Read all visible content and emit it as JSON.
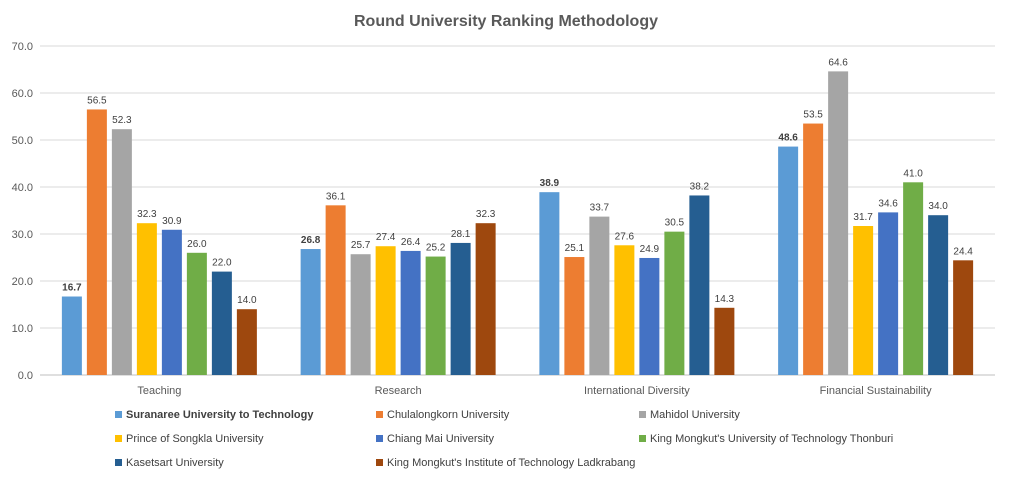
{
  "chart_data": {
    "type": "bar",
    "title": "Round University Ranking Methodology",
    "xlabel": "",
    "ylabel": "",
    "ylim": [
      0,
      70
    ],
    "yticks": [
      "0.0",
      "10.0",
      "20.0",
      "30.0",
      "40.0",
      "50.0",
      "60.0",
      "70.0"
    ],
    "grid": true,
    "legend_position": "bottom",
    "categories": [
      "Teaching",
      "Research",
      "International Diversity",
      "Financial Sustainability"
    ],
    "series": [
      {
        "name": "Suranaree University to Technology",
        "color": "#5B9BD5",
        "bold": true,
        "values": [
          16.7,
          26.8,
          38.9,
          48.6
        ]
      },
      {
        "name": "Chulalongkorn University",
        "color": "#ED7D31",
        "bold": false,
        "values": [
          56.5,
          36.1,
          25.1,
          53.5
        ]
      },
      {
        "name": "Mahidol University",
        "color": "#A5A5A5",
        "bold": false,
        "values": [
          52.3,
          25.7,
          33.7,
          64.6
        ]
      },
      {
        "name": "Prince of Songkla University",
        "color": "#FFC000",
        "bold": false,
        "values": [
          32.3,
          27.4,
          27.6,
          31.7
        ]
      },
      {
        "name": "Chiang Mai University",
        "color": "#4472C4",
        "bold": false,
        "values": [
          30.9,
          26.4,
          24.9,
          34.6
        ]
      },
      {
        "name": "King Mongkut's University of Technology Thonburi",
        "color": "#70AD47",
        "bold": false,
        "values": [
          26.0,
          25.2,
          30.5,
          41.0
        ]
      },
      {
        "name": "Kasetsart University",
        "color": "#255E91",
        "bold": false,
        "values": [
          22.0,
          28.1,
          38.2,
          34.0
        ]
      },
      {
        "name": "King Mongkut's Institute of Technology Ladkrabang",
        "color": "#9E480E",
        "bold": false,
        "values": [
          14.0,
          32.3,
          14.3,
          24.4
        ]
      }
    ]
  }
}
